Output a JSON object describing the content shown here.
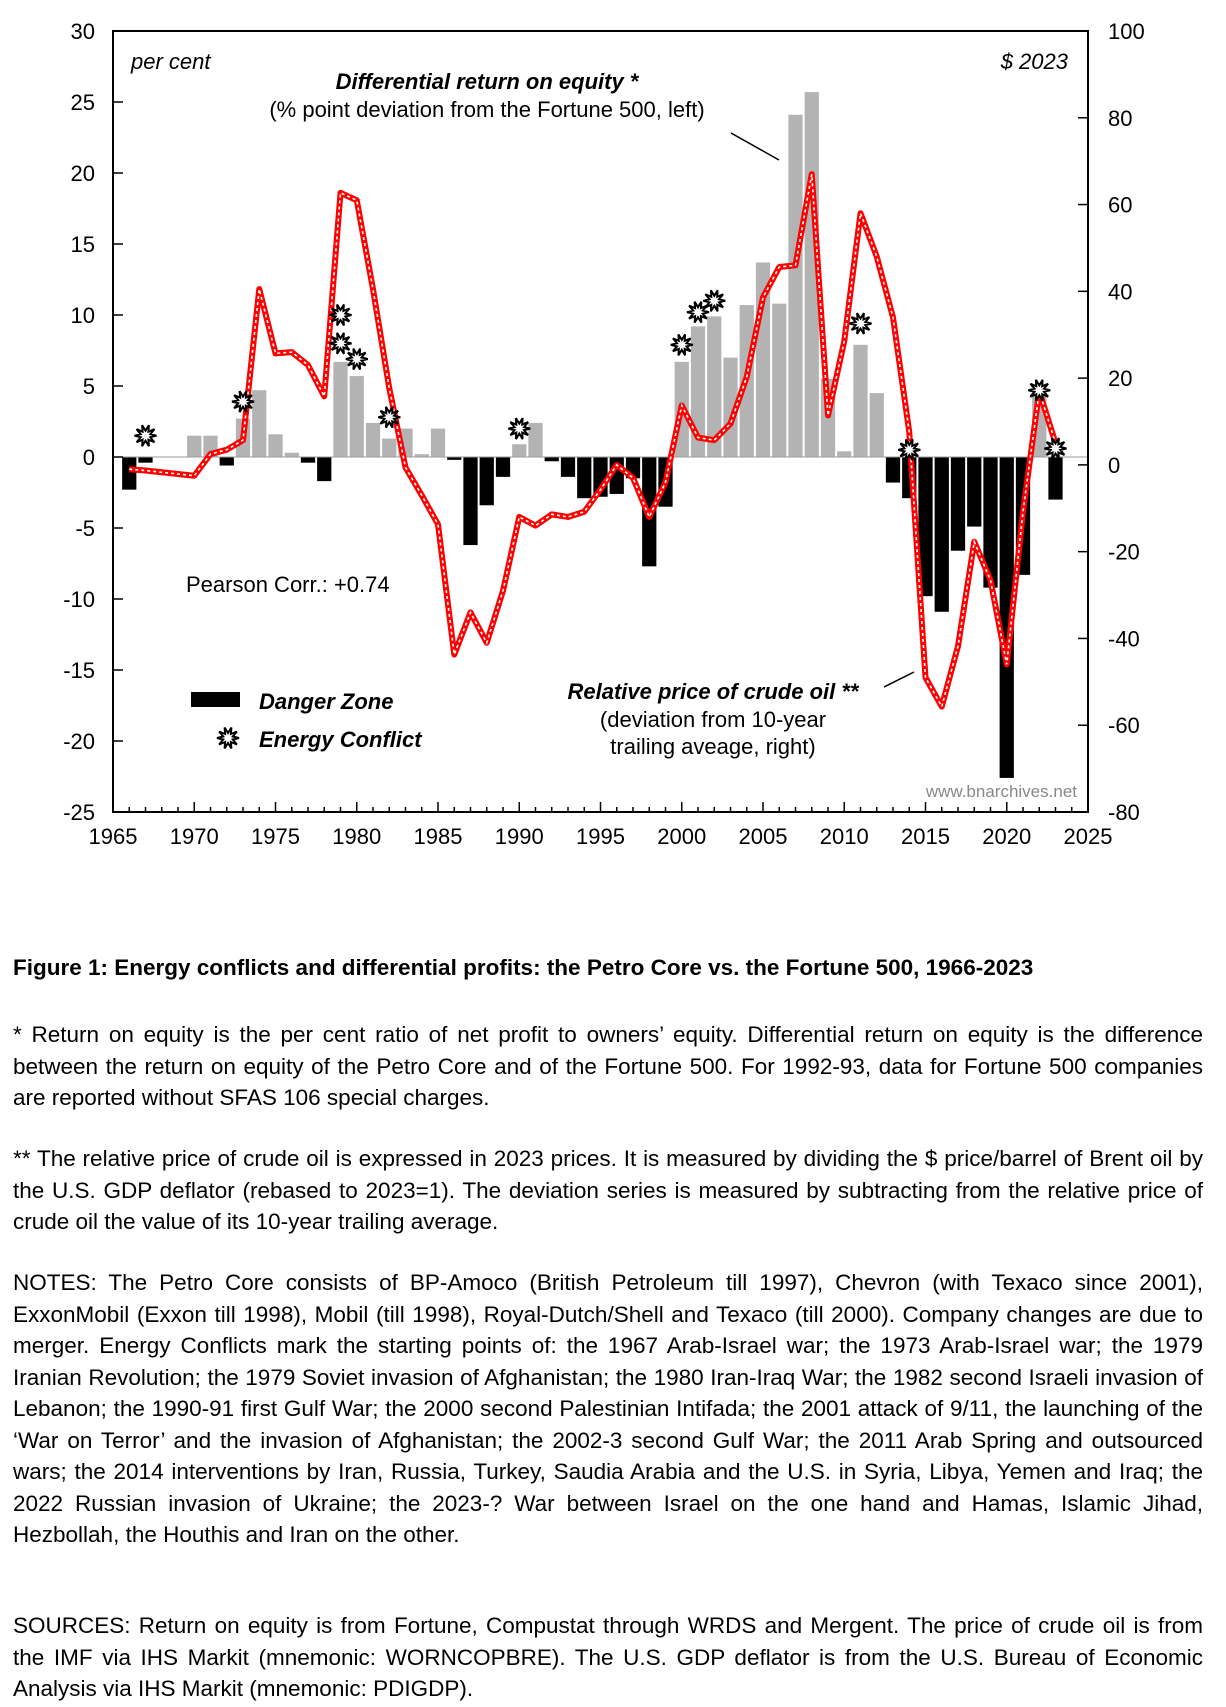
{
  "chart_data": {
    "type": "bar+line",
    "left_axis": {
      "label": "per cent",
      "ylim": [
        -25,
        30
      ],
      "ticks": [
        30,
        25,
        20,
        15,
        10,
        5,
        0,
        -5,
        -10,
        -15,
        -20,
        -25
      ]
    },
    "right_axis": {
      "label": "$ 2023",
      "ylim": [
        -80,
        100
      ],
      "ticks": [
        100,
        80,
        60,
        40,
        20,
        0,
        -20,
        -40,
        -60,
        -80
      ]
    },
    "x_axis": {
      "xlim": [
        1965,
        2025
      ],
      "ticks": [
        1965,
        1970,
        1975,
        1980,
        1985,
        1990,
        1995,
        2000,
        2005,
        2010,
        2015,
        2020,
        2025
      ]
    },
    "years": [
      1966,
      1967,
      1968,
      1969,
      1970,
      1971,
      1972,
      1973,
      1974,
      1975,
      1976,
      1977,
      1978,
      1979,
      1980,
      1981,
      1982,
      1983,
      1984,
      1985,
      1986,
      1987,
      1988,
      1989,
      1990,
      1991,
      1992,
      1993,
      1994,
      1995,
      1996,
      1997,
      1998,
      1999,
      2000,
      2001,
      2002,
      2003,
      2004,
      2005,
      2006,
      2007,
      2008,
      2009,
      2010,
      2011,
      2012,
      2013,
      2014,
      2015,
      2016,
      2017,
      2018,
      2019,
      2020,
      2021,
      2022,
      2023
    ],
    "series": [
      {
        "name": "Differential return on equity *",
        "axis": "left",
        "type": "bar",
        "values": [
          -2.3,
          -0.4,
          0,
          0,
          1.5,
          1.5,
          -0.6,
          2.7,
          4.7,
          1.6,
          0.3,
          -0.4,
          -1.7,
          6.7,
          5.7,
          2.4,
          1.3,
          2.0,
          0.2,
          2.0,
          -0.2,
          -6.2,
          -3.4,
          -1.4,
          0.9,
          2.4,
          -0.3,
          -1.4,
          -2.9,
          -2.8,
          -2.6,
          -1.5,
          -7.7,
          -3.5,
          6.7,
          9.2,
          9.9,
          7.0,
          10.7,
          13.7,
          10.8,
          24.1,
          25.7,
          5.5,
          0.4,
          7.9,
          4.5,
          -1.8,
          -2.9,
          -9.8,
          -10.9,
          -6.6,
          -4.9,
          -9.2,
          -22.6,
          -8.3,
          4.5,
          -3.0
        ]
      },
      {
        "name": "Relative price of crude oil **",
        "axis": "right",
        "type": "line",
        "values": [
          -1,
          -1.3,
          -1.7,
          -2.1,
          -2.5,
          2.5,
          3.5,
          5.7,
          40.5,
          25.7,
          26,
          23,
          15.8,
          62.7,
          61,
          40.5,
          17.7,
          -0.6,
          -7,
          -13.7,
          -43.7,
          -34,
          -41,
          -29,
          -12,
          -14,
          -11.4,
          -12,
          -10.8,
          -5.7,
          0,
          -3,
          -12,
          -4,
          13.7,
          6.3,
          5.7,
          9.5,
          20.3,
          38.6,
          45.6,
          46,
          67,
          11.4,
          28.5,
          58,
          48,
          34,
          7.6,
          -49,
          -55.7,
          -41.8,
          -17.7,
          -26.6,
          -46,
          -10.8,
          17,
          5
        ]
      }
    ],
    "energy_conflicts": [
      {
        "year": 1967,
        "y": 1.5
      },
      {
        "year": 1973,
        "y": 3.9
      },
      {
        "year": 1979,
        "y": 10
      },
      {
        "year": 1979,
        "y": 8
      },
      {
        "year": 1980,
        "y": 6.9
      },
      {
        "year": 1982,
        "y": 2.8
      },
      {
        "year": 1990,
        "y": 2
      },
      {
        "year": 2000,
        "y": 7.9
      },
      {
        "year": 2001,
        "y": 10.2
      },
      {
        "year": 2002,
        "y": 11
      },
      {
        "year": 2011,
        "y": 9.4
      },
      {
        "year": 2014,
        "y": 0.5
      },
      {
        "year": 2022,
        "y": 4.7
      },
      {
        "year": 2023,
        "y": 0.6
      }
    ],
    "bar_colors": {
      "positive": "#b3b3b3",
      "negative": "#000000"
    },
    "line_color": "#ff0000",
    "labels": {
      "left_unit": "per cent",
      "right_unit": "$ 2023",
      "bar_title": "Differential return on equity *",
      "bar_subtitle": "(% point deviation from the Fortune 500, left)",
      "line_title": "Relative price of crude oil **",
      "line_subtitle1": "(deviation from 10-year",
      "line_subtitle2": "trailing aveage, right)",
      "correlation": "Pearson Corr.: +0.74",
      "legend_danger": "Danger Zone",
      "legend_conflict": "Energy Conflict",
      "watermark": "www.bnarchives.net"
    }
  },
  "caption": "Figure 1: Energy conflicts and differential profits: the Petro Core vs. the Fortune 500, 1966-2023",
  "notes": [
    "* Return on equity is the per cent ratio of net profit to owners’ equity. Differential return on equity is the difference between the return on equity of the Petro Core and of the Fortune 500. For 1992-93, data for Fortune 500 companies are reported without SFAS 106 special charges.",
    "** The relative price of crude oil is expressed in 2023 prices. It is measured by dividing the $ price/barrel of Brent oil by the U.S. GDP deflator (rebased to 2023=1). The deviation series is measured by subtracting from the relative price of crude oil the value of its 10-year trailing average.",
    "NOTES: The Petro Core consists of BP-Amoco (British Petroleum till 1997), Chevron (with Texaco since 2001), ExxonMobil (Exxon till 1998), Mobil (till 1998), Royal-Dutch/Shell and Texaco (till 2000). Company changes are due to merger. Energy Conflicts mark the starting points of: the 1967 Arab-Israel war; the 1973 Arab-Israel war; the 1979 Iranian Revolution; the 1979 Soviet invasion of Afghanistan; the 1980 Iran-Iraq War; the 1982 second Israeli invasion of Lebanon; the 1990-91 first Gulf War; the 2000 second Palestinian Intifada; the 2001 attack of 9/11, the launching of the ‘War on Terror’ and the invasion of Afghanistan; the 2002-3 second Gulf War; the 2011 Arab Spring and outsourced wars; the 2014 interventions by Iran, Russia, Turkey, Saudia Arabia and the U.S. in Syria, Libya, Yemen and Iraq; the 2022 Russian invasion of Ukraine; the 2023-? War between Israel on the one hand and Hamas, Islamic Jihad, Hezbollah, the Houthis and Iran on the other.",
    "SOURCES: Return on equity is from Fortune, Compustat through WRDS and Mergent. The price of crude oil is from the IMF via IHS Markit (mnemonic: WORNCOPBRE). The U.S. GDP deflator is from the U.S. Bureau of Economic Analysis via IHS Markit (mnemonic: PDIGDP)."
  ]
}
